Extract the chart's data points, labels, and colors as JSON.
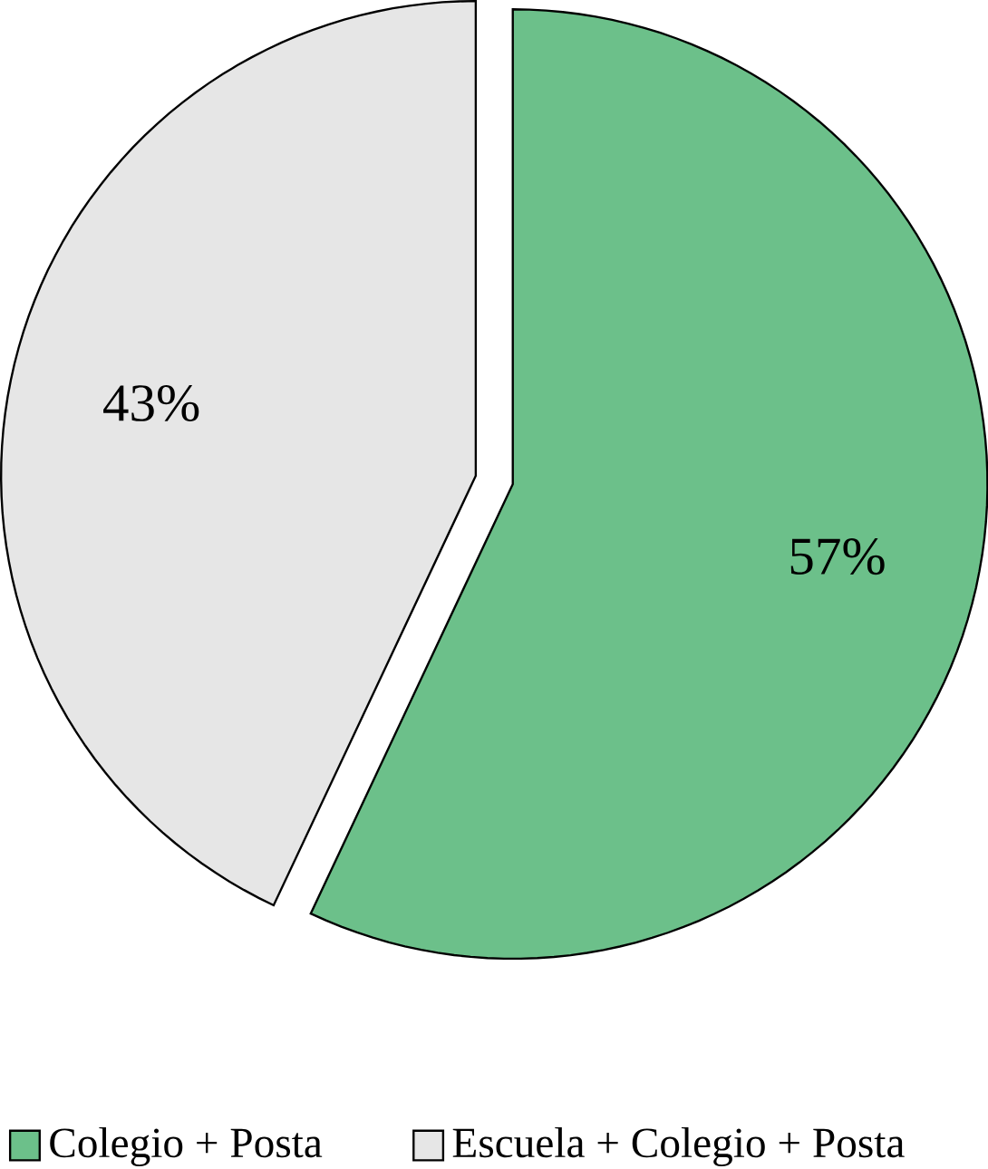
{
  "chart_data": {
    "type": "pie",
    "categories": [
      "Colegio + Posta",
      "Escuela + Colegio + Posta"
    ],
    "values": [
      57,
      43
    ],
    "colors": [
      "#6cc08a",
      "#e6e6e6"
    ],
    "value_labels": [
      "57%",
      "43%"
    ],
    "legend": "bottom"
  }
}
